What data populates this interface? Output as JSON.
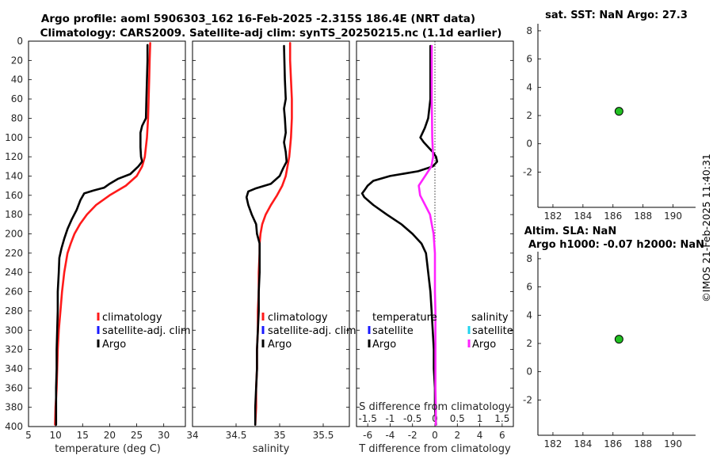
{
  "header": {
    "line1": "Argo profile: aoml 5906303_162 16-Feb-2025 -2.315S 186.4E (NRT data)",
    "line2": "Climatology: CARS2009. Satellite-adj clim: synTS_20250215.nc (1.1d earlier)"
  },
  "watermark": "©IMOS 21-Feb-2025 11:40:31",
  "colors": {
    "climatology": "#ff1a1a",
    "satellite": "#1a1aff",
    "argo": "#000000",
    "salinity_diff": "#ff22ff",
    "salinity_sat": "#22d3ee",
    "marker": "#22c022"
  },
  "depth_ticks": [
    "0",
    "20",
    "40",
    "60",
    "80",
    "100",
    "120",
    "140",
    "160",
    "180",
    "200",
    "220",
    "240",
    "260",
    "280",
    "300",
    "320",
    "340",
    "360",
    "380",
    "400"
  ],
  "chart_data": [
    {
      "type": "line",
      "name": "temperature",
      "xlabel": "temperature (deg C)",
      "ylabel": "",
      "xlim": [
        5,
        34
      ],
      "ylim": [
        400,
        0
      ],
      "x_ticks": [
        "5",
        "10",
        "15",
        "20",
        "25",
        "30"
      ],
      "legend": [
        "climatology",
        "satellite-adj. clim",
        "Argo"
      ],
      "series": [
        {
          "name": "climatology",
          "color": "#ff1a1a",
          "depth": [
            2,
            20,
            40,
            60,
            80,
            100,
            120,
            130,
            140,
            150,
            160,
            170,
            180,
            190,
            200,
            210,
            220,
            240,
            260,
            280,
            300,
            320,
            340,
            360,
            380,
            398
          ],
          "values": [
            27.5,
            27.4,
            27.3,
            27.2,
            27.1,
            26.9,
            26.5,
            26.0,
            25.0,
            23.0,
            20.0,
            17.5,
            15.8,
            14.5,
            13.5,
            12.8,
            12.2,
            11.6,
            11.2,
            10.9,
            10.6,
            10.4,
            10.3,
            10.2,
            10.0,
            9.9
          ]
        },
        {
          "name": "Argo",
          "color": "#000000",
          "depth": [
            4,
            20,
            40,
            60,
            80,
            88,
            95,
            110,
            120,
            125,
            130,
            138,
            143,
            148,
            152,
            155,
            158,
            165,
            175,
            185,
            195,
            205,
            215,
            225,
            240,
            260,
            280,
            300,
            320,
            340,
            360,
            380,
            398
          ],
          "values": [
            27.0,
            27.0,
            26.9,
            26.8,
            26.7,
            26.0,
            25.7,
            25.7,
            25.8,
            26.0,
            25.3,
            23.8,
            21.5,
            20.0,
            19.0,
            17.0,
            15.3,
            14.6,
            13.9,
            13.0,
            12.2,
            11.6,
            11.1,
            10.7,
            10.6,
            10.4,
            10.4,
            10.3,
            10.2,
            10.2,
            10.1,
            10.1,
            10.1
          ]
        }
      ]
    },
    {
      "type": "line",
      "name": "salinity",
      "xlabel": "salinity",
      "xlim": [
        34,
        35.8
      ],
      "ylim": [
        400,
        0
      ],
      "x_ticks": [
        "34",
        "34.5",
        "35",
        "35.5"
      ],
      "legend": [
        "climatology",
        "satellite-adj. clim",
        "Argo"
      ],
      "series": [
        {
          "name": "climatology",
          "color": "#ff1a1a",
          "depth": [
            2,
            20,
            40,
            60,
            80,
            100,
            120,
            140,
            150,
            160,
            170,
            180,
            190,
            200,
            210,
            220,
            240,
            260,
            280,
            300,
            320,
            340,
            360,
            380,
            398
          ],
          "values": [
            35.12,
            35.12,
            35.13,
            35.14,
            35.14,
            35.13,
            35.11,
            35.07,
            35.03,
            34.97,
            34.9,
            34.84,
            34.8,
            34.78,
            34.77,
            34.77,
            34.76,
            34.76,
            34.75,
            34.75,
            34.74,
            34.74,
            34.73,
            34.73,
            34.72
          ]
        },
        {
          "name": "Argo",
          "color": "#000000",
          "depth": [
            5,
            40,
            60,
            70,
            80,
            95,
            105,
            115,
            125,
            132,
            140,
            148,
            153,
            156,
            162,
            170,
            180,
            190,
            200,
            210,
            220,
            240,
            260,
            280,
            300,
            320,
            340,
            360,
            380,
            398
          ],
          "values": [
            35.05,
            35.06,
            35.07,
            35.05,
            35.06,
            35.07,
            35.05,
            35.07,
            35.08,
            35.04,
            35.0,
            34.9,
            34.72,
            34.64,
            34.62,
            34.64,
            34.68,
            34.73,
            34.74,
            34.77,
            34.77,
            34.77,
            34.76,
            34.76,
            34.75,
            34.74,
            34.74,
            34.73,
            34.72,
            34.72
          ]
        }
      ]
    },
    {
      "type": "line",
      "name": "difference",
      "xlabel": "T difference from climatology",
      "top_xlabel": "S difference from climatology",
      "xlim": [
        -7,
        7
      ],
      "ylim": [
        400,
        0
      ],
      "x_ticks": [
        "-6",
        "-4",
        "-2",
        "0",
        "2",
        "4",
        "6"
      ],
      "top_ticks": [
        "-1.5",
        "-1",
        "-0.5",
        "0",
        "0.5",
        "1",
        "1.5"
      ],
      "legend_t_title": "temperature",
      "legend_s_title": "salinity",
      "legend_t": [
        "satellite",
        "Argo"
      ],
      "legend_s": [
        "satellite",
        "Argo"
      ],
      "series": [
        {
          "name": "T difference (Argo)",
          "color": "#000000",
          "depth": [
            5,
            60,
            80,
            90,
            100,
            105,
            110,
            115,
            120,
            125,
            130,
            135,
            140,
            145,
            150,
            155,
            158,
            162,
            170,
            180,
            190,
            200,
            210,
            220,
            240,
            260,
            280,
            300,
            320,
            340,
            360,
            380,
            398
          ],
          "values": [
            -0.4,
            -0.4,
            -0.6,
            -0.9,
            -1.3,
            -1.0,
            -0.6,
            -0.2,
            0.1,
            0.2,
            -0.2,
            -1.5,
            -4.0,
            -5.5,
            -6.0,
            -6.3,
            -6.5,
            -6.3,
            -5.5,
            -4.3,
            -3.0,
            -2.0,
            -1.2,
            -0.8,
            -0.6,
            -0.4,
            -0.3,
            -0.2,
            -0.1,
            -0.1,
            0.0,
            0.0,
            0.1
          ]
        },
        {
          "name": "S difference (Argo)",
          "color": "#ff22ff",
          "depth": [
            5,
            60,
            100,
            120,
            130,
            140,
            150,
            160,
            170,
            180,
            190,
            200,
            220,
            240,
            260,
            280,
            300,
            320,
            340,
            360,
            380,
            398
          ],
          "values": [
            -0.07,
            -0.07,
            -0.06,
            -0.04,
            -0.08,
            -0.22,
            -0.36,
            -0.33,
            -0.22,
            -0.11,
            -0.07,
            -0.03,
            0.0,
            0.0,
            0.0,
            0.01,
            0.01,
            0.01,
            0.01,
            0.01,
            0.02,
            0.02
          ]
        }
      ]
    },
    {
      "type": "scatter",
      "name": "sst",
      "title": "sat. SST: NaN Argo: 27.3",
      "xlim": [
        181,
        191.5
      ],
      "ylim": [
        -4.5,
        8.5
      ],
      "x_ticks": [
        "182",
        "184",
        "186",
        "188",
        "190"
      ],
      "y_ticks": [
        "-2",
        "0",
        "2",
        "4",
        "6",
        "8"
      ],
      "x": [
        186.4
      ],
      "y": [
        2.3
      ]
    },
    {
      "type": "scatter",
      "name": "sla",
      "title1": "Altim. SLA: NaN",
      "title2": "Argo h1000: -0.07 h2000: NaN",
      "xlim": [
        181,
        191.5
      ],
      "ylim": [
        -4.5,
        8.5
      ],
      "x_ticks": [
        "182",
        "184",
        "186",
        "188",
        "190"
      ],
      "y_ticks": [
        "-2",
        "0",
        "2",
        "4",
        "6",
        "8"
      ],
      "x": [
        186.4
      ],
      "y": [
        2.3
      ]
    }
  ]
}
